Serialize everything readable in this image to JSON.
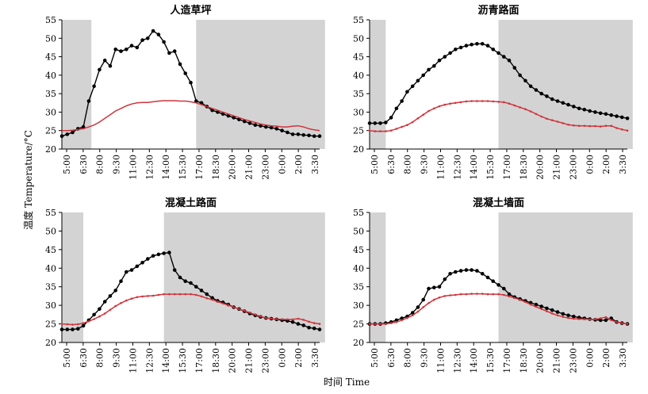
{
  "figure": {
    "ylabel": "温度 Temperature/°C",
    "xlabel": "时间 Time"
  },
  "colors": {
    "series_black": "#000000",
    "series_red": "#d0343c",
    "shade": "#d3d3d3"
  },
  "chart_data": [
    {
      "type": "line",
      "title": "人造草坪",
      "ylim": [
        20,
        55
      ],
      "yticks": [
        20,
        25,
        30,
        35,
        40,
        45,
        50,
        55
      ],
      "xticks": [
        "5:00",
        "6:30",
        "8:00",
        "9:30",
        "11:00",
        "12:30",
        "14:00",
        "15:30",
        "17:00",
        "18:30",
        "20:00",
        "21:00",
        "23:00",
        "0:00",
        "2:00",
        "3:30"
      ],
      "x_start": 5.0,
      "x_step": 0.5,
      "shaded_ranges": [
        [
          5.0,
          7.75
        ],
        [
          17.5,
          29.5
        ]
      ],
      "grid": false,
      "series": [
        {
          "color": "black",
          "markers": true,
          "values": [
            23.5,
            24.0,
            24.5,
            25.5,
            26.0,
            33.0,
            37.0,
            41.5,
            44.0,
            42.5,
            47.0,
            46.5,
            47.0,
            48.0,
            47.5,
            49.5,
            50.0,
            52.0,
            51.0,
            49.0,
            46.0,
            46.5,
            43.0,
            40.5,
            38.0,
            33.0,
            32.5,
            31.5,
            30.5,
            30.0,
            29.5,
            29.0,
            28.5,
            28.0,
            27.5,
            27.0,
            26.5,
            26.3,
            26.0,
            25.8,
            25.5,
            25.0,
            24.5,
            24.0,
            24.0,
            23.8,
            23.7,
            23.5,
            23.5
          ]
        },
        {
          "color": "red",
          "markers": false,
          "values": [
            25.0,
            25.0,
            25.1,
            25.3,
            25.5,
            26.0,
            26.5,
            27.3,
            28.3,
            29.3,
            30.3,
            31.0,
            31.7,
            32.2,
            32.5,
            32.6,
            32.6,
            32.8,
            33.0,
            33.1,
            33.1,
            33.1,
            33.0,
            33.0,
            32.8,
            32.5,
            32.0,
            31.5,
            31.0,
            30.5,
            30.0,
            29.5,
            29.0,
            28.5,
            28.0,
            27.6,
            27.2,
            26.8,
            26.5,
            26.3,
            26.2,
            26.0,
            26.0,
            26.2,
            26.3,
            26.0,
            25.5,
            25.2,
            25.0
          ]
        }
      ]
    },
    {
      "type": "line",
      "title": "沥青路面",
      "ylim": [
        20,
        55
      ],
      "yticks": [
        20,
        25,
        30,
        35,
        40,
        45,
        50,
        55
      ],
      "xticks": [
        "5:00",
        "6:30",
        "8:00",
        "9:30",
        "11:00",
        "12:30",
        "14:00",
        "15:30",
        "17:00",
        "18:30",
        "20:00",
        "21:00",
        "23:00",
        "0:00",
        "2:00",
        "3:30"
      ],
      "x_start": 5.0,
      "x_step": 0.5,
      "shaded_ranges": [
        [
          5.0,
          6.5
        ],
        [
          17.0,
          29.5
        ]
      ],
      "grid": false,
      "series": [
        {
          "color": "black",
          "markers": true,
          "values": [
            27.0,
            27.0,
            27.0,
            27.2,
            28.5,
            31.0,
            33.0,
            35.5,
            37.0,
            38.5,
            40.0,
            41.5,
            42.5,
            44.0,
            45.0,
            46.0,
            47.0,
            47.5,
            48.0,
            48.3,
            48.5,
            48.5,
            48.0,
            47.0,
            46.0,
            45.0,
            44.0,
            42.0,
            40.0,
            38.5,
            37.0,
            36.0,
            35.0,
            34.3,
            33.5,
            33.0,
            32.5,
            32.0,
            31.5,
            31.0,
            30.7,
            30.3,
            30.0,
            29.7,
            29.5,
            29.2,
            28.9,
            28.6,
            28.3
          ]
        },
        {
          "color": "red",
          "markers": true,
          "values": [
            25.0,
            24.8,
            24.8,
            24.8,
            25.0,
            25.5,
            26.0,
            26.5,
            27.3,
            28.3,
            29.3,
            30.3,
            31.0,
            31.6,
            32.0,
            32.3,
            32.5,
            32.7,
            32.9,
            33.0,
            33.0,
            33.0,
            33.0,
            32.9,
            32.8,
            32.7,
            32.3,
            31.8,
            31.3,
            30.8,
            30.2,
            29.5,
            28.8,
            28.2,
            27.8,
            27.4,
            27.0,
            26.6,
            26.4,
            26.3,
            26.3,
            26.2,
            26.2,
            26.1,
            26.3,
            26.3,
            25.7,
            25.3,
            25.0
          ]
        }
      ]
    },
    {
      "type": "line",
      "title": "混凝土路面",
      "ylim": [
        20,
        55
      ],
      "yticks": [
        20,
        25,
        30,
        35,
        40,
        45,
        50,
        55
      ],
      "xticks": [
        "5:00",
        "6:30",
        "8:00",
        "9:30",
        "11:00",
        "12:30",
        "14:00",
        "15:30",
        "17:00",
        "18:30",
        "20:00",
        "21:00",
        "23:00",
        "0:00",
        "2:00",
        "3:30"
      ],
      "x_start": 5.0,
      "x_step": 0.5,
      "shaded_ranges": [
        [
          5.0,
          7.0
        ],
        [
          14.5,
          29.5
        ]
      ],
      "grid": false,
      "series": [
        {
          "color": "black",
          "markers": true,
          "values": [
            23.5,
            23.5,
            23.5,
            23.7,
            24.5,
            26.0,
            27.5,
            29.0,
            31.0,
            32.5,
            34.0,
            36.5,
            39.0,
            39.5,
            40.5,
            41.5,
            42.5,
            43.3,
            43.7,
            44.0,
            44.2,
            39.5,
            37.5,
            36.5,
            36.0,
            35.0,
            34.0,
            33.0,
            32.0,
            31.2,
            30.8,
            30.2,
            29.5,
            29.0,
            28.4,
            27.8,
            27.3,
            26.9,
            26.6,
            26.4,
            26.2,
            26.0,
            25.8,
            25.5,
            25.0,
            24.6,
            24.0,
            23.8,
            23.5
          ]
        },
        {
          "color": "red",
          "markers": true,
          "values": [
            25.0,
            24.9,
            24.8,
            24.9,
            25.2,
            25.7,
            26.3,
            27.0,
            27.8,
            28.8,
            29.8,
            30.6,
            31.3,
            31.8,
            32.2,
            32.4,
            32.5,
            32.6,
            32.8,
            33.0,
            33.0,
            33.0,
            33.0,
            33.0,
            33.0,
            32.8,
            32.4,
            31.9,
            31.5,
            31.0,
            30.5,
            30.0,
            29.5,
            29.0,
            28.5,
            28.0,
            27.5,
            27.0,
            26.6,
            26.4,
            26.3,
            26.2,
            26.2,
            26.2,
            26.4,
            26.1,
            25.6,
            25.2,
            25.0
          ]
        }
      ]
    },
    {
      "type": "line",
      "title": "混凝土墙面",
      "ylim": [
        20,
        55
      ],
      "yticks": [
        20,
        25,
        30,
        35,
        40,
        45,
        50,
        55
      ],
      "xticks": [
        "5:00",
        "6:30",
        "8:00",
        "9:30",
        "11:00",
        "12:30",
        "14:00",
        "15:30",
        "17:00",
        "18:30",
        "20:00",
        "21:00",
        "23:00",
        "0:00",
        "2:00",
        "3:30"
      ],
      "x_start": 5.0,
      "x_step": 0.5,
      "shaded_ranges": [
        [
          5.0,
          6.5
        ],
        [
          17.0,
          29.5
        ]
      ],
      "grid": false,
      "series": [
        {
          "color": "black",
          "markers": true,
          "values": [
            25.0,
            25.0,
            25.0,
            25.2,
            25.5,
            26.0,
            26.5,
            27.0,
            28.0,
            29.5,
            31.5,
            34.5,
            34.8,
            35.0,
            37.0,
            38.5,
            39.0,
            39.3,
            39.5,
            39.5,
            39.3,
            38.5,
            37.5,
            36.5,
            35.5,
            34.5,
            33.0,
            32.2,
            31.7,
            31.2,
            30.7,
            30.2,
            29.7,
            29.2,
            28.7,
            28.2,
            27.7,
            27.3,
            27.0,
            26.7,
            26.5,
            26.3,
            26.1,
            26.0,
            26.0,
            26.5,
            25.5,
            25.2,
            25.0
          ]
        },
        {
          "color": "red",
          "markers": true,
          "values": [
            25.0,
            25.0,
            25.0,
            25.0,
            25.2,
            25.5,
            26.0,
            26.6,
            27.3,
            28.3,
            29.5,
            30.6,
            31.5,
            32.1,
            32.5,
            32.7,
            32.8,
            33.0,
            33.0,
            33.1,
            33.1,
            33.1,
            33.0,
            33.0,
            33.0,
            32.8,
            32.4,
            32.0,
            31.5,
            30.9,
            30.2,
            29.6,
            29.0,
            28.4,
            27.8,
            27.3,
            26.9,
            26.6,
            26.4,
            26.3,
            26.3,
            26.2,
            26.2,
            26.5,
            26.8,
            26.0,
            25.5,
            25.2,
            25.0
          ]
        }
      ]
    }
  ]
}
